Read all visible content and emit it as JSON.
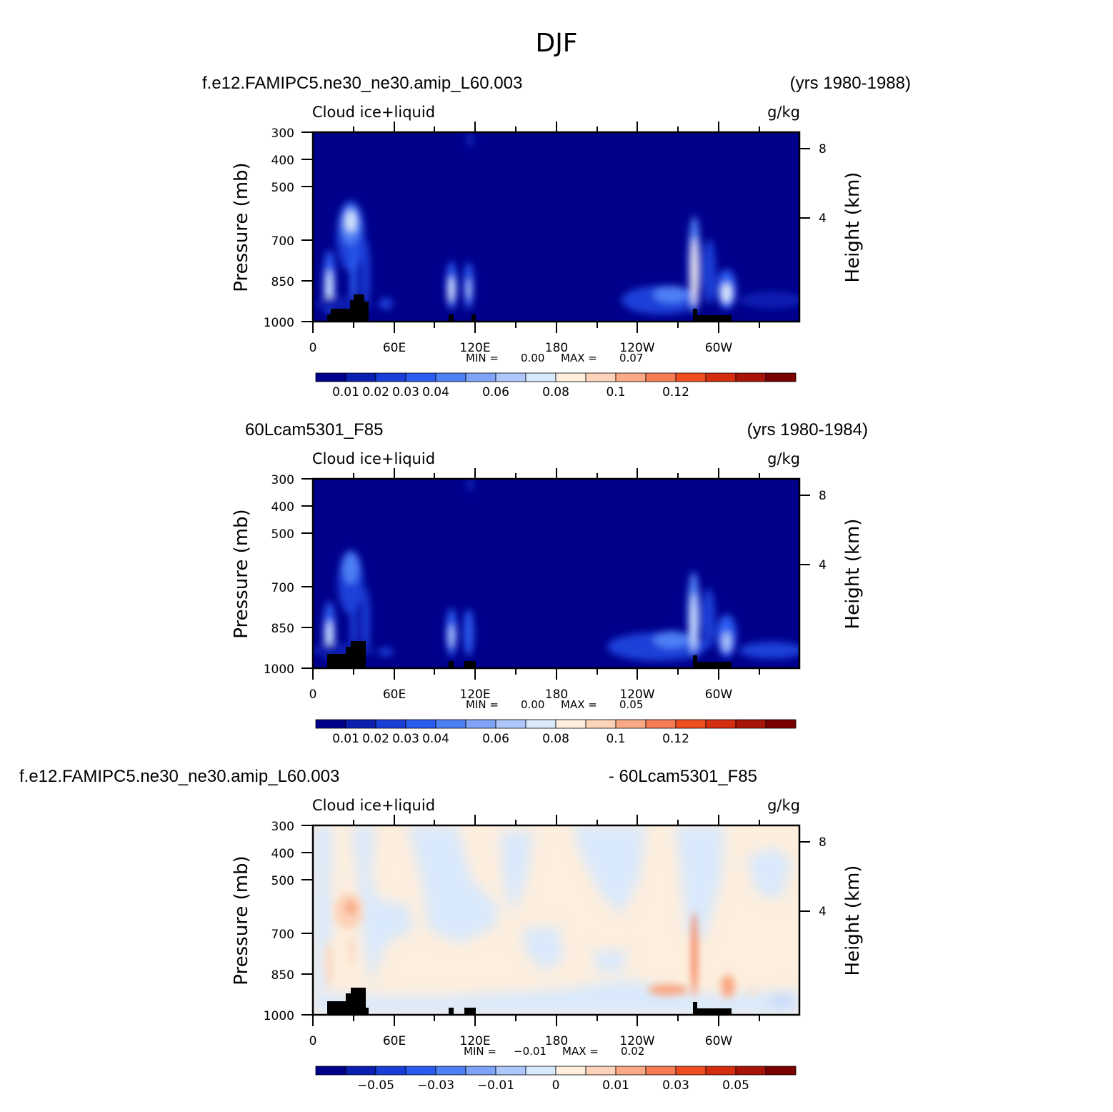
{
  "page_title": "DJF",
  "chart_data": [
    {
      "type": "heatmap",
      "case_name": "f.e12.FAMIPC5.ne30_ne30.amip_L60.003",
      "years": "(yrs 1980-1988)",
      "variable": "Cloud ice+liquid",
      "units": "g/kg",
      "ylabel": "Pressure (mb)",
      "ylabel_right": "Height (km)",
      "x_ticks": [
        "0",
        "60E",
        "120E",
        "180",
        "120W",
        "60W"
      ],
      "y_ticks": [
        "300",
        "400",
        "500",
        "700",
        "850",
        "1000"
      ],
      "y_ticks_right": [
        "8",
        "4"
      ],
      "min_label": "MIN =",
      "min_value": "0.00",
      "max_label": "MAX =",
      "max_value": "0.07",
      "colorbar_labels": [
        "0.01",
        "0.02",
        "0.03",
        "0.04",
        "0.06",
        "0.08",
        "0.1",
        "0.12"
      ],
      "colorbar_colors": [
        "#00008b",
        "#0a1fb0",
        "#1a3fd8",
        "#2a5cf0",
        "#4d7ff5",
        "#7fa3f7",
        "#aec7fa",
        "#d9e9fc",
        "#fdeedd",
        "#fcd2b8",
        "#f9a985",
        "#f57c55",
        "#f04d20",
        "#d42d10",
        "#a81508",
        "#7a0000"
      ],
      "features": [
        {
          "lon": 12,
          "p_top": 780,
          "value": 0.06
        },
        {
          "lon": 29,
          "p_top": 580,
          "value": 0.045
        },
        {
          "lon": 35,
          "p_top": 720,
          "value": 0.02
        },
        {
          "lon": 101,
          "p_top": 800,
          "value": 0.04
        },
        {
          "lon": 115,
          "p_top": 800,
          "value": 0.035
        },
        {
          "lon": 287,
          "p_top": 620,
          "value": 0.07
        },
        {
          "lon": 297,
          "p_top": 700,
          "value": 0.025
        },
        {
          "lon": 305,
          "p_top": 790,
          "value": 0.05
        },
        {
          "lon": 265,
          "p_top": 860,
          "value": 0.025
        }
      ]
    },
    {
      "type": "heatmap",
      "case_name": "60Lcam5301_F85",
      "years": "(yrs 1980-1984)",
      "variable": "Cloud ice+liquid",
      "units": "g/kg",
      "ylabel": "Pressure (mb)",
      "ylabel_right": "Height (km)",
      "x_ticks": [
        "0",
        "60E",
        "120E",
        "180",
        "120W",
        "60W"
      ],
      "y_ticks": [
        "300",
        "400",
        "500",
        "700",
        "850",
        "1000"
      ],
      "y_ticks_right": [
        "8",
        "4"
      ],
      "min_label": "MIN =",
      "min_value": "0.00",
      "max_label": "MAX =",
      "max_value": "0.05",
      "colorbar_labels": [
        "0.01",
        "0.02",
        "0.03",
        "0.04",
        "0.06",
        "0.08",
        "0.1",
        "0.12"
      ],
      "colorbar_colors": [
        "#00008b",
        "#0a1fb0",
        "#1a3fd8",
        "#2a5cf0",
        "#4d7ff5",
        "#7fa3f7",
        "#aec7fa",
        "#d9e9fc",
        "#fdeedd",
        "#fcd2b8",
        "#f9a985",
        "#f57c55",
        "#f04d20",
        "#d42d10",
        "#a81508",
        "#7a0000"
      ],
      "features": [
        {
          "lon": 12,
          "p_top": 790,
          "value": 0.045
        },
        {
          "lon": 29,
          "p_top": 600,
          "value": 0.03
        },
        {
          "lon": 35,
          "p_top": 740,
          "value": 0.02
        },
        {
          "lon": 101,
          "p_top": 800,
          "value": 0.035
        },
        {
          "lon": 115,
          "p_top": 800,
          "value": 0.03
        },
        {
          "lon": 283,
          "p_top": 640,
          "value": 0.05
        },
        {
          "lon": 294,
          "p_top": 720,
          "value": 0.025
        },
        {
          "lon": 305,
          "p_top": 800,
          "value": 0.04
        },
        {
          "lon": 260,
          "p_top": 870,
          "value": 0.02
        }
      ]
    },
    {
      "type": "heatmap",
      "case_name": "f.e12.FAMIPC5.ne30_ne30.amip_L60.003",
      "years": "- 60Lcam5301_F85",
      "variable": "Cloud ice+liquid",
      "units": "g/kg",
      "ylabel": "Pressure (mb)",
      "ylabel_right": "Height (km)",
      "x_ticks": [
        "0",
        "60E",
        "120E",
        "180",
        "120W",
        "60W"
      ],
      "y_ticks": [
        "300",
        "400",
        "500",
        "700",
        "850",
        "1000"
      ],
      "y_ticks_right": [
        "8",
        "4"
      ],
      "min_label": "MIN =",
      "min_value": "−0.01",
      "max_label": "MAX =",
      "max_value": "0.02",
      "colorbar_labels": [
        "−0.05",
        "−0.03",
        "−0.01",
        "0",
        "0.01",
        "0.03",
        "0.05"
      ],
      "colorbar_colors": [
        "#00008b",
        "#0a1fb0",
        "#1a3fd8",
        "#2a5cf0",
        "#4d7ff5",
        "#7fa3f7",
        "#aec7fa",
        "#d9e9fc",
        "#fdeedd",
        "#fcd2b8",
        "#f9a985",
        "#f57c55",
        "#f04d20",
        "#d42d10",
        "#a81508",
        "#7a0000"
      ]
    }
  ]
}
